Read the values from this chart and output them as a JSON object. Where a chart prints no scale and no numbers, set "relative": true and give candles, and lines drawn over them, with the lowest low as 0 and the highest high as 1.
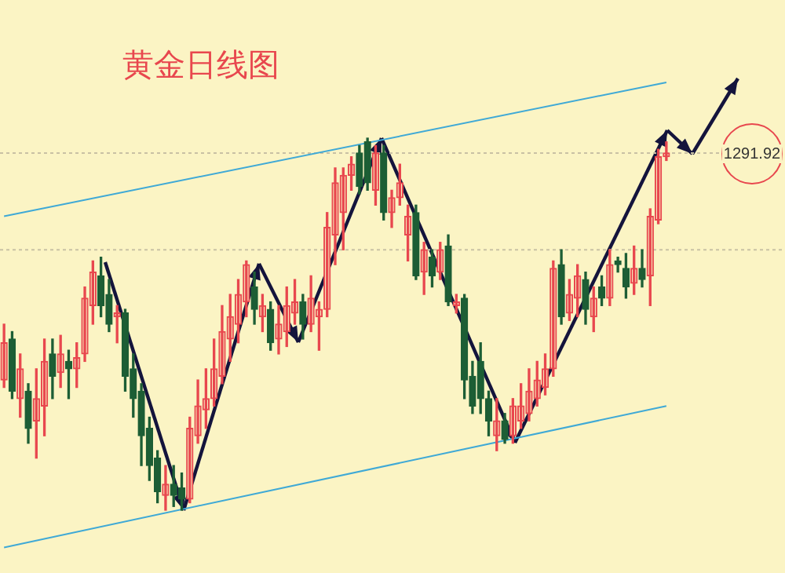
{
  "chart_data": {
    "type": "candlestick",
    "title": "黄金日线图",
    "relative": true,
    "categories": [
      null,
      null,
      null,
      null,
      null,
      null,
      null,
      null,
      null,
      null,
      null,
      null,
      null,
      null,
      null,
      null,
      null,
      null,
      null,
      null,
      null,
      null,
      null,
      null,
      null,
      null,
      null,
      null,
      null,
      null,
      null,
      null,
      null,
      null,
      null,
      null,
      null,
      null,
      null,
      null,
      null,
      null,
      null,
      null,
      null,
      null,
      null,
      null,
      null,
      null,
      null,
      null,
      null,
      null,
      null,
      null,
      null,
      null,
      null,
      null,
      null,
      null,
      null,
      null,
      null,
      null,
      null,
      null,
      null,
      null,
      null,
      null,
      null,
      null,
      null,
      null,
      null,
      null,
      null,
      null,
      null,
      null,
      null
    ],
    "ohlc": [
      [
        0.35,
        0.5,
        0.33,
        0.45
      ],
      [
        0.46,
        0.48,
        0.3,
        0.32
      ],
      [
        0.3,
        0.42,
        0.25,
        0.38
      ],
      [
        0.32,
        0.34,
        0.18,
        0.22
      ],
      [
        0.24,
        0.38,
        0.14,
        0.3
      ],
      [
        0.28,
        0.46,
        0.2,
        0.4
      ],
      [
        0.42,
        0.46,
        0.3,
        0.36
      ],
      [
        0.37,
        0.47,
        0.33,
        0.42
      ],
      [
        0.4,
        0.43,
        0.3,
        0.38
      ],
      [
        0.38,
        0.45,
        0.33,
        0.41
      ],
      [
        0.42,
        0.6,
        0.4,
        0.57
      ],
      [
        0.55,
        0.67,
        0.5,
        0.64
      ],
      [
        0.63,
        0.68,
        0.52,
        0.55
      ],
      [
        0.58,
        0.62,
        0.48,
        0.5
      ],
      [
        0.52,
        0.55,
        0.45,
        0.53
      ],
      [
        0.53,
        0.54,
        0.32,
        0.36
      ],
      [
        0.38,
        0.42,
        0.25,
        0.3
      ],
      [
        0.32,
        0.34,
        0.12,
        0.2
      ],
      [
        0.22,
        0.25,
        0.08,
        0.12
      ],
      [
        0.14,
        0.16,
        0.02,
        0.05
      ],
      [
        0.04,
        0.12,
        0.0,
        0.07
      ],
      [
        0.07,
        0.12,
        0.01,
        0.04
      ],
      [
        0.06,
        0.1,
        0.0,
        0.03
      ],
      [
        0.03,
        0.25,
        0.02,
        0.22
      ],
      [
        0.2,
        0.35,
        0.18,
        0.28
      ],
      [
        0.27,
        0.38,
        0.22,
        0.3
      ],
      [
        0.3,
        0.46,
        0.28,
        0.38
      ],
      [
        0.36,
        0.55,
        0.34,
        0.48
      ],
      [
        0.46,
        0.58,
        0.4,
        0.52
      ],
      [
        0.5,
        0.62,
        0.45,
        0.58
      ],
      [
        0.56,
        0.67,
        0.52,
        0.66
      ],
      [
        0.6,
        0.64,
        0.5,
        0.54
      ],
      [
        0.52,
        0.58,
        0.48,
        0.55
      ],
      [
        0.54,
        0.56,
        0.43,
        0.45
      ],
      [
        0.46,
        0.55,
        0.42,
        0.5
      ],
      [
        0.48,
        0.6,
        0.44,
        0.55
      ],
      [
        0.53,
        0.62,
        0.5,
        0.56
      ],
      [
        0.56,
        0.58,
        0.46,
        0.5
      ],
      [
        0.5,
        0.63,
        0.48,
        0.57
      ],
      [
        0.52,
        0.56,
        0.43,
        0.54
      ],
      [
        0.54,
        0.8,
        0.52,
        0.76
      ],
      [
        0.74,
        0.92,
        0.66,
        0.88
      ],
      [
        0.8,
        0.92,
        0.7,
        0.9
      ],
      [
        0.9,
        0.95,
        0.86,
        0.93
      ],
      [
        0.96,
        0.98,
        0.85,
        0.87
      ],
      [
        0.99,
        1.0,
        0.86,
        0.88
      ],
      [
        0.86,
        0.98,
        0.82,
        0.96
      ],
      [
        0.96,
        0.98,
        0.78,
        0.8
      ],
      [
        0.8,
        0.86,
        0.76,
        0.84
      ],
      [
        0.84,
        0.93,
        0.82,
        0.88
      ],
      [
        0.74,
        0.82,
        0.67,
        0.79
      ],
      [
        0.8,
        0.82,
        0.62,
        0.63
      ],
      [
        0.64,
        0.72,
        0.58,
        0.7
      ],
      [
        0.68,
        0.7,
        0.6,
        0.63
      ],
      [
        0.64,
        0.72,
        0.62,
        0.7
      ],
      [
        0.71,
        0.74,
        0.55,
        0.56
      ],
      [
        0.55,
        0.58,
        0.53,
        0.56
      ],
      [
        0.57,
        0.58,
        0.3,
        0.35
      ],
      [
        0.36,
        0.4,
        0.26,
        0.28
      ],
      [
        0.4,
        0.45,
        0.26,
        0.3
      ],
      [
        0.3,
        0.32,
        0.2,
        0.24
      ],
      [
        0.2,
        0.3,
        0.16,
        0.24
      ],
      [
        0.24,
        0.26,
        0.18,
        0.19
      ],
      [
        0.2,
        0.3,
        0.18,
        0.28
      ],
      [
        0.24,
        0.34,
        0.22,
        0.28
      ],
      [
        0.26,
        0.38,
        0.24,
        0.32
      ],
      [
        0.3,
        0.4,
        0.28,
        0.35
      ],
      [
        0.33,
        0.42,
        0.31,
        0.38
      ],
      [
        0.38,
        0.67,
        0.36,
        0.65
      ],
      [
        0.66,
        0.7,
        0.5,
        0.52
      ],
      [
        0.53,
        0.62,
        0.51,
        0.58
      ],
      [
        0.57,
        0.66,
        0.52,
        0.63
      ],
      [
        0.62,
        0.64,
        0.5,
        0.54
      ],
      [
        0.52,
        0.6,
        0.48,
        0.57
      ],
      [
        0.6,
        0.63,
        0.55,
        0.57
      ],
      [
        0.57,
        0.7,
        0.55,
        0.66
      ],
      [
        0.67,
        0.68,
        0.64,
        0.66
      ],
      [
        0.65,
        0.69,
        0.57,
        0.6
      ],
      [
        0.61,
        0.71,
        0.58,
        0.65
      ],
      [
        0.65,
        0.7,
        0.6,
        0.62
      ],
      [
        0.63,
        0.81,
        0.55,
        0.79
      ],
      [
        0.78,
        0.97,
        0.77,
        0.95
      ],
      [
        0.95,
        0.99,
        0.94,
        0.96
      ]
    ],
    "series": [
      {
        "type": "line",
        "color": "#3fa9d6",
        "values": [
          0.79,
          null,
          null,
          null,
          null,
          null,
          null,
          null,
          null,
          null,
          null,
          null,
          null,
          null,
          null,
          null,
          null,
          null,
          null,
          null,
          null,
          null,
          null,
          null,
          null,
          null,
          null,
          null,
          null,
          null,
          null,
          null,
          null,
          null,
          null,
          null,
          null,
          null,
          null,
          null,
          null,
          null,
          null,
          null,
          null,
          null,
          null,
          null,
          null,
          null,
          null,
          null,
          null,
          null,
          null,
          null,
          null,
          null,
          null,
          null,
          null,
          null,
          null,
          null,
          null,
          null,
          null,
          null,
          null,
          null,
          null,
          null,
          null,
          null,
          null,
          null,
          null,
          null,
          null,
          null,
          null,
          null,
          1.15
        ]
      },
      {
        "type": "line",
        "color": "#3fa9d6",
        "values": [
          -0.1,
          null,
          null,
          null,
          null,
          null,
          null,
          null,
          null,
          null,
          null,
          null,
          null,
          null,
          null,
          null,
          null,
          null,
          null,
          null,
          null,
          null,
          null,
          null,
          null,
          null,
          null,
          null,
          null,
          null,
          null,
          null,
          null,
          null,
          null,
          null,
          null,
          null,
          null,
          null,
          null,
          null,
          null,
          null,
          null,
          null,
          null,
          null,
          null,
          null,
          null,
          null,
          null,
          null,
          null,
          null,
          null,
          null,
          null,
          null,
          null,
          null,
          null,
          null,
          null,
          null,
          null,
          null,
          null,
          null,
          null,
          null,
          null,
          null,
          null,
          null,
          null,
          null,
          null,
          null,
          null,
          null,
          0.28
        ]
      }
    ],
    "annotations": [
      "1291.92"
    ],
    "ref_lines": [
      {
        "axis": "y",
        "value": 0.96,
        "color": "#c9c1a4",
        "line_style": "dotted"
      },
      {
        "axis": "y",
        "value": 0.7,
        "color": "#c9c1a4",
        "line_style": "dotted"
      }
    ]
  }
}
